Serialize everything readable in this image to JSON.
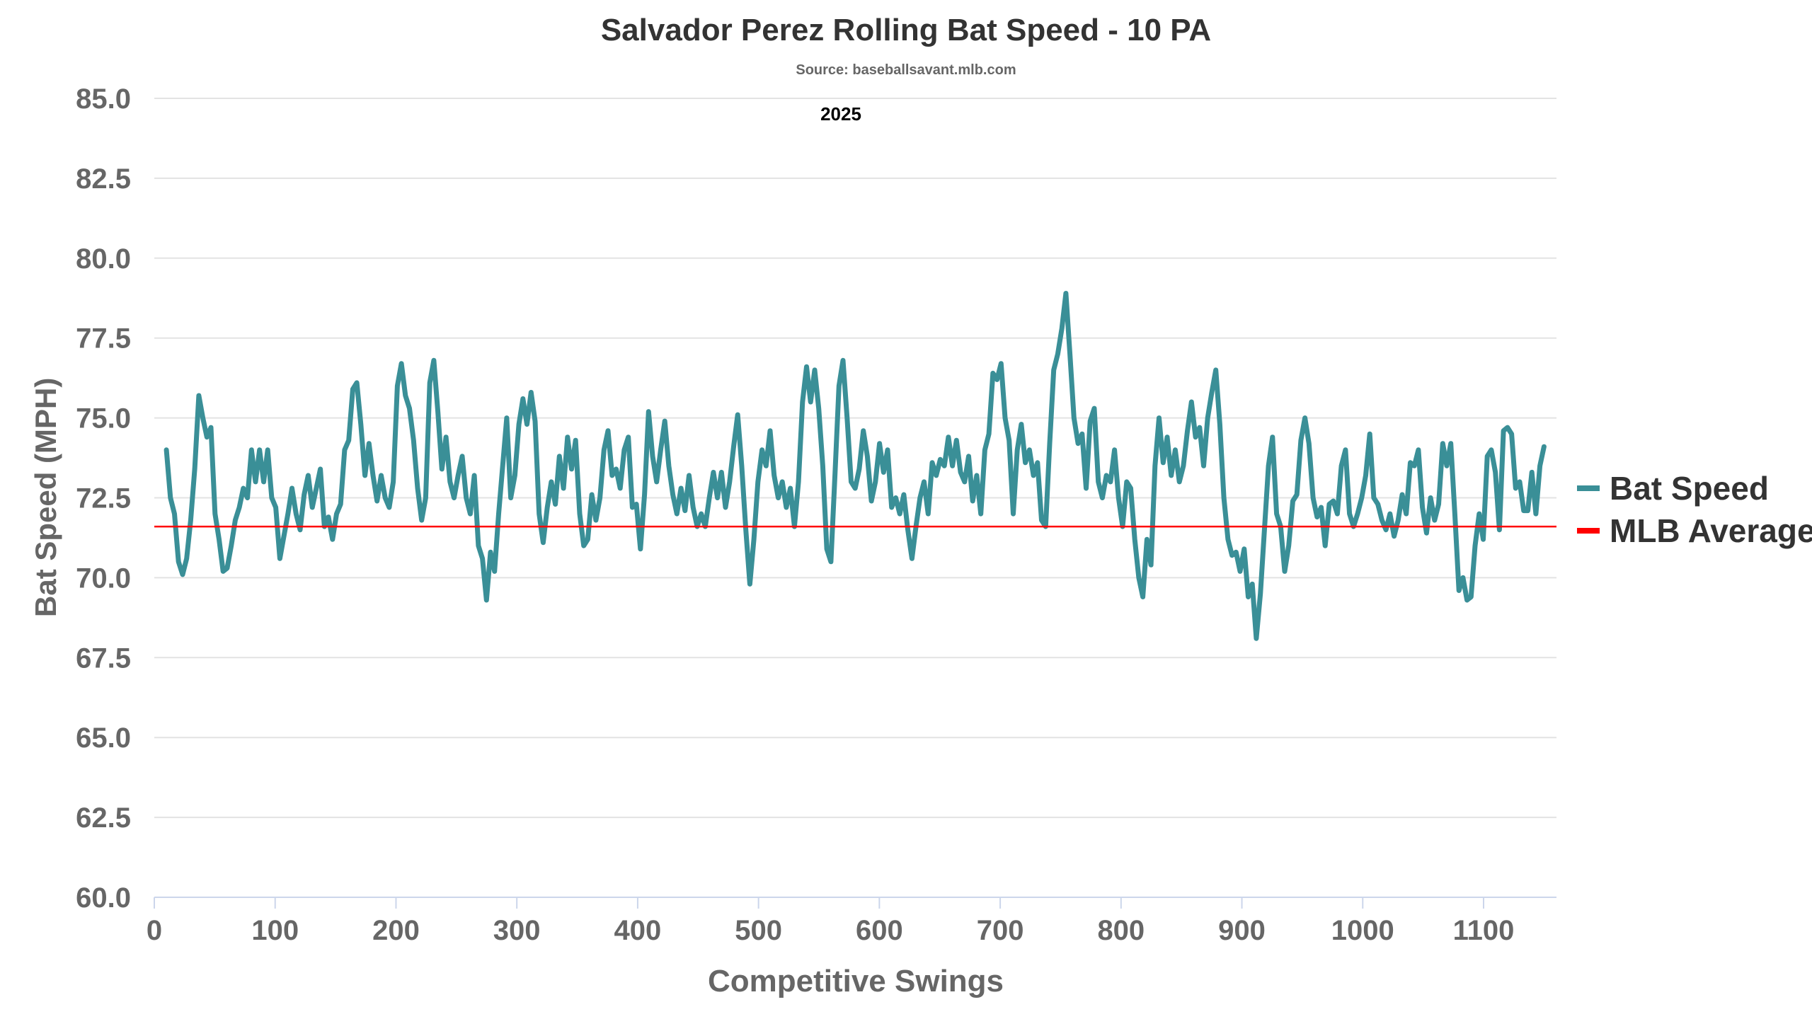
{
  "chart_data": {
    "type": "line",
    "title": "Salvador Perez Rolling Bat Speed - 10 PA",
    "subtitle": "Source: baseballsavant.mlb.com",
    "annotation": "2025",
    "xlabel": "Competitive Swings",
    "ylabel": "Bat Speed (MPH)",
    "xlim": [
      0,
      1160
    ],
    "ylim": [
      60,
      85
    ],
    "xticks": [
      "0",
      "100",
      "200",
      "300",
      "400",
      "500",
      "600",
      "700",
      "800",
      "900",
      "1000",
      "1100"
    ],
    "xtick_values": [
      0,
      100,
      200,
      300,
      400,
      500,
      600,
      700,
      800,
      900,
      1000,
      1100
    ],
    "yticks": [
      "60.0",
      "62.5",
      "65.0",
      "67.5",
      "70.0",
      "72.5",
      "75.0",
      "77.5",
      "80.0",
      "82.5",
      "85.0"
    ],
    "ytick_values": [
      60,
      62.5,
      65,
      67.5,
      70,
      72.5,
      75,
      77.5,
      80,
      82.5,
      85
    ],
    "grid": true,
    "legend_position": "right",
    "series": [
      {
        "name": "Bat Speed",
        "color": "#3a8f97",
        "x_range": [
          10,
          1150
        ],
        "values": [
          74.0,
          72.5,
          72.0,
          70.5,
          70.1,
          70.6,
          71.8,
          73.4,
          75.7,
          75.0,
          74.4,
          74.7,
          72.0,
          71.2,
          70.2,
          70.3,
          71.0,
          71.8,
          72.2,
          72.8,
          72.5,
          74.0,
          73.0,
          74.0,
          73.0,
          74.0,
          72.5,
          72.2,
          70.6,
          71.3,
          72.0,
          72.8,
          72.0,
          71.5,
          72.6,
          73.2,
          72.2,
          72.8,
          73.4,
          71.6,
          71.9,
          71.2,
          72.0,
          72.3,
          74.0,
          74.3,
          75.9,
          76.1,
          74.8,
          73.2,
          74.2,
          73.2,
          72.4,
          73.2,
          72.5,
          72.2,
          73.0,
          76.0,
          76.7,
          75.7,
          75.3,
          74.3,
          72.8,
          71.8,
          72.5,
          76.1,
          76.8,
          75.2,
          73.4,
          74.4,
          73.0,
          72.5,
          73.2,
          73.8,
          72.5,
          72.0,
          73.2,
          71.0,
          70.6,
          69.3,
          70.8,
          70.2,
          72.0,
          73.5,
          75.0,
          72.5,
          73.2,
          74.8,
          75.6,
          74.8,
          75.8,
          74.9,
          72.0,
          71.1,
          72.2,
          73.0,
          72.3,
          73.8,
          72.8,
          74.4,
          73.4,
          74.3,
          72.0,
          71.0,
          71.2,
          72.6,
          71.8,
          72.5,
          74.0,
          74.6,
          73.2,
          73.4,
          72.8,
          74.0,
          74.4,
          72.2,
          72.3,
          70.9,
          72.6,
          75.2,
          73.8,
          73.0,
          74.0,
          74.9,
          73.5,
          72.6,
          72.0,
          72.8,
          72.1,
          73.2,
          72.2,
          71.6,
          72.0,
          71.6,
          72.5,
          73.3,
          72.5,
          73.3,
          72.2,
          73.0,
          74.1,
          75.1,
          73.5,
          71.5,
          69.8,
          71.2,
          73.0,
          74.0,
          73.5,
          74.6,
          73.2,
          72.5,
          73.0,
          72.2,
          72.8,
          71.6,
          73.0,
          75.5,
          76.6,
          75.5,
          76.5,
          75.3,
          73.5,
          70.9,
          70.5,
          73.2,
          76.0,
          76.8,
          75.0,
          73.0,
          72.8,
          73.4,
          74.6,
          73.8,
          72.4,
          73.0,
          74.2,
          73.3,
          74.0,
          72.2,
          72.5,
          72.0,
          72.6,
          71.5,
          70.6,
          71.6,
          72.5,
          73.0,
          72.0,
          73.6,
          73.2,
          73.7,
          73.5,
          74.4,
          73.5,
          74.3,
          73.3,
          73.0,
          73.8,
          72.4,
          73.2,
          72.0,
          74.0,
          74.5,
          76.4,
          76.2,
          76.7,
          75.0,
          74.3,
          72.0,
          74.0,
          74.8,
          73.6,
          74.0,
          73.2,
          73.6,
          71.8,
          71.6,
          74.2,
          76.5,
          77.0,
          77.8,
          78.9,
          77.0,
          75.0,
          74.2,
          74.5,
          72.8,
          74.9,
          75.3,
          73.0,
          72.5,
          73.2,
          73.0,
          74.0,
          72.5,
          71.6,
          73.0,
          72.8,
          71.2,
          70.0,
          69.4,
          71.2,
          70.4,
          73.5,
          75.0,
          73.6,
          74.4,
          73.2,
          74.0,
          73.0,
          73.5,
          74.6,
          75.5,
          74.4,
          74.7,
          73.5,
          75.0,
          75.8,
          76.5,
          74.8,
          72.5,
          71.2,
          70.7,
          70.8,
          70.2,
          70.9,
          69.4,
          69.8,
          68.1,
          69.5,
          71.5,
          73.5,
          74.4,
          72.0,
          71.6,
          70.2,
          71.0,
          72.4,
          72.6,
          74.3,
          75.0,
          74.2,
          72.5,
          71.9,
          72.2,
          71.0,
          72.3,
          72.4,
          72.0,
          73.5,
          74.0,
          72.0,
          71.6,
          72.0,
          72.5,
          73.2,
          74.5,
          72.5,
          72.3,
          71.8,
          71.5,
          72.0,
          71.3,
          71.8,
          72.6,
          72.0,
          73.6,
          73.5,
          74.0,
          72.2,
          71.4,
          72.5,
          71.8,
          72.3,
          74.2,
          73.5,
          74.2,
          72.0,
          69.6,
          70.0,
          69.3,
          69.4,
          71.0,
          72.0,
          71.2,
          73.8,
          74.0,
          73.3,
          71.5,
          74.6,
          74.7,
          74.5,
          72.8,
          73.0,
          72.1,
          72.1,
          73.3,
          72.0,
          73.5,
          74.1
        ]
      },
      {
        "name": "MLB Average",
        "color": "#ff0000",
        "value": 71.6
      }
    ]
  }
}
